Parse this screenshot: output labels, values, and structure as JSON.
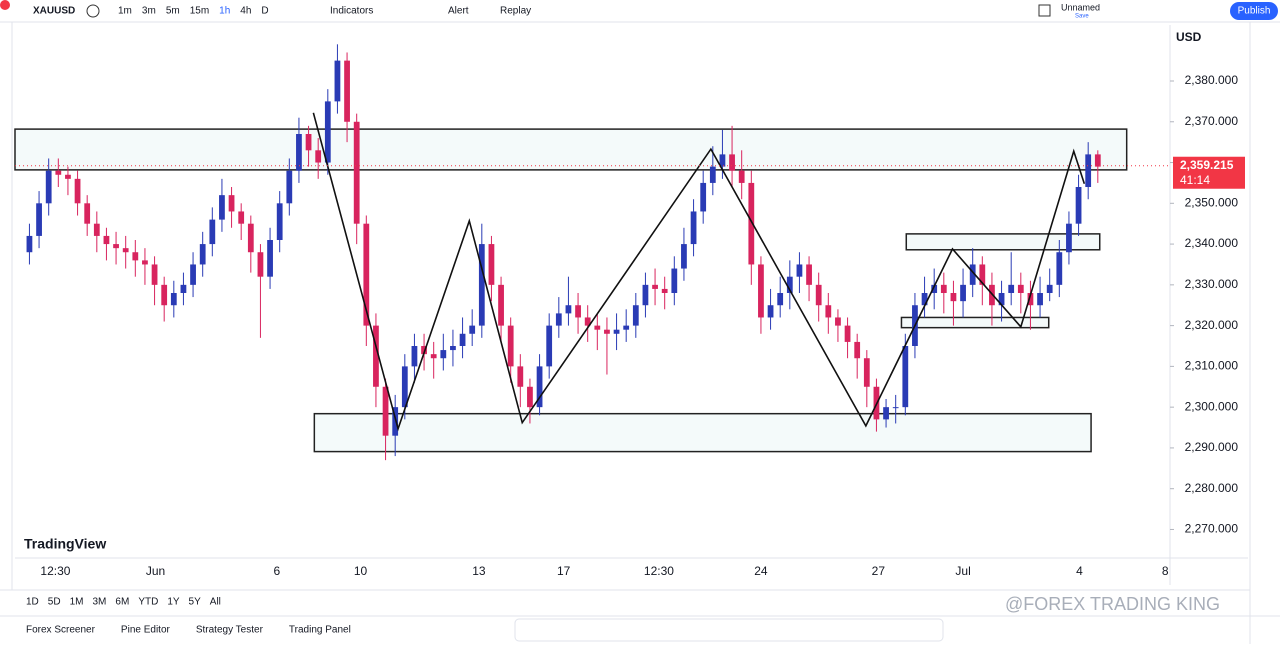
{
  "toolbar": {
    "symbol": "XAUUSD",
    "intervals": [
      "1m",
      "3m",
      "5m",
      "15m",
      "1h",
      "4h",
      "D"
    ],
    "active_interval": 4,
    "indicators": "Indicators",
    "alert": "Alert",
    "replay": "Replay",
    "layout_name": "Unnamed",
    "save": "Save",
    "publish": "Publish"
  },
  "chart_data": {
    "type": "candlestick",
    "currency": "USD",
    "watermark": "TradingView",
    "overlay_text": "@FOREX TRADING KING",
    "up_color": "#2a3bb5",
    "down_color": "#d8245e",
    "ylim": [
      2263,
      2393
    ],
    "yticks": [
      {
        "value": 2270,
        "label": "2,270.000"
      },
      {
        "value": 2280,
        "label": "2,280.000"
      },
      {
        "value": 2290,
        "label": "2,290.000"
      },
      {
        "value": 2300,
        "label": "2,300.000"
      },
      {
        "value": 2310,
        "label": "2,310.000"
      },
      {
        "value": 2320,
        "label": "2,320.000"
      },
      {
        "value": 2330,
        "label": "2,330.000"
      },
      {
        "value": 2340,
        "label": "2,340.000"
      },
      {
        "value": 2350,
        "label": "2,350.000"
      },
      {
        "value": 2360,
        "label": "2,360.000"
      },
      {
        "value": 2370,
        "label": "2,370.000"
      },
      {
        "value": 2380,
        "label": "2,380.000"
      }
    ],
    "xlim": [
      -1.5,
      118.5
    ],
    "xticks": [
      {
        "value": 2.7,
        "label": "12:30"
      },
      {
        "value": 13.1,
        "label": "Jun"
      },
      {
        "value": 25.7,
        "label": "6"
      },
      {
        "value": 34.4,
        "label": "10"
      },
      {
        "value": 46.7,
        "label": "13"
      },
      {
        "value": 55.5,
        "label": "17"
      },
      {
        "value": 65.4,
        "label": "12:30"
      },
      {
        "value": 76.0,
        "label": "24"
      },
      {
        "value": 88.2,
        "label": "27"
      },
      {
        "value": 97.0,
        "label": "Jul"
      },
      {
        "value": 109.1,
        "label": "4"
      },
      {
        "value": 118.0,
        "label": "8"
      }
    ],
    "last_price": {
      "value": 2359.215,
      "label": "2,359.215"
    },
    "countdown": "41:14",
    "x": [
      0,
      1,
      2,
      3,
      4,
      5,
      6,
      7,
      8,
      9,
      10,
      11,
      12,
      13,
      14,
      15,
      16,
      17,
      18,
      19,
      20,
      21,
      22,
      23,
      24,
      25,
      26,
      27,
      28,
      29,
      30,
      31,
      32,
      33,
      34,
      35,
      36,
      37,
      38,
      39,
      40,
      41,
      42,
      43,
      44,
      45,
      46,
      47,
      48,
      49,
      50,
      51,
      52,
      53,
      54,
      55,
      56,
      57,
      58,
      59,
      60,
      61,
      62,
      63,
      64,
      65,
      66,
      67,
      68,
      69,
      70,
      71,
      72,
      73,
      74,
      75,
      76,
      77,
      78,
      79,
      80,
      81,
      82,
      83,
      84,
      85,
      86,
      87,
      88,
      89,
      90,
      91,
      92,
      93,
      94,
      95,
      96,
      97,
      98,
      99,
      100,
      101,
      102,
      103,
      104,
      105,
      106,
      107,
      108,
      109,
      110,
      111
    ],
    "open": [
      2338,
      2342,
      2350,
      2358,
      2357,
      2356,
      2350,
      2345,
      2342,
      2340,
      2339,
      2338,
      2336,
      2335,
      2330,
      2325,
      2328,
      2330,
      2335,
      2340,
      2346,
      2352,
      2348,
      2345,
      2338,
      2332,
      2341,
      2350,
      2358,
      2367,
      2363,
      2360,
      2375,
      2385,
      2370,
      2345,
      2320,
      2305,
      2293,
      2300,
      2310,
      2315,
      2313,
      2312,
      2314,
      2315,
      2318,
      2320,
      2340,
      2330,
      2320,
      2310,
      2305,
      2300,
      2310,
      2320,
      2323,
      2325,
      2322,
      2320,
      2319,
      2318,
      2319,
      2320,
      2325,
      2330,
      2329,
      2328,
      2334,
      2340,
      2348,
      2355,
      2359,
      2362,
      2358,
      2355,
      2335,
      2322,
      2325,
      2328,
      2332,
      2335,
      2330,
      2325,
      2322,
      2320,
      2316,
      2312,
      2305,
      2297,
      2300,
      2300,
      2315,
      2325,
      2328,
      2330,
      2328,
      2326,
      2330,
      2335,
      2330,
      2325,
      2328,
      2330,
      2328,
      2325,
      2328,
      2330,
      2338,
      2345,
      2354,
      2362
    ],
    "high": [
      2345,
      2353,
      2361,
      2361,
      2359,
      2358,
      2352,
      2348,
      2344,
      2343,
      2342,
      2341,
      2339,
      2337,
      2332,
      2331,
      2333,
      2338,
      2343,
      2349,
      2356,
      2354,
      2350,
      2347,
      2340,
      2344,
      2353,
      2361,
      2371,
      2369,
      2366,
      2378,
      2389,
      2387,
      2372,
      2347,
      2323,
      2307,
      2303,
      2313,
      2318,
      2318,
      2316,
      2318,
      2319,
      2322,
      2324,
      2345,
      2342,
      2332,
      2322,
      2313,
      2307,
      2313,
      2323,
      2327,
      2332,
      2328,
      2325,
      2323,
      2322,
      2323,
      2324,
      2328,
      2333,
      2334,
      2332,
      2337,
      2344,
      2351,
      2358,
      2364,
      2368,
      2369,
      2363,
      2358,
      2337,
      2329,
      2332,
      2336,
      2338,
      2337,
      2333,
      2328,
      2324,
      2322,
      2318,
      2314,
      2307,
      2302,
      2303,
      2318,
      2328,
      2332,
      2334,
      2333,
      2331,
      2334,
      2339,
      2337,
      2333,
      2331,
      2338,
      2333,
      2331,
      2332,
      2334,
      2341,
      2348,
      2357,
      2365,
      2363
    ],
    "low": [
      2335,
      2339,
      2347,
      2354,
      2352,
      2347,
      2342,
      2338,
      2336,
      2335,
      2334,
      2332,
      2330,
      2325,
      2321,
      2322,
      2325,
      2327,
      2332,
      2337,
      2343,
      2344,
      2341,
      2333,
      2317,
      2329,
      2338,
      2347,
      2355,
      2359,
      2356,
      2357,
      2372,
      2365,
      2340,
      2315,
      2300,
      2287,
      2288,
      2297,
      2306,
      2309,
      2307,
      2309,
      2310,
      2312,
      2315,
      2317,
      2326,
      2316,
      2306,
      2300,
      2296,
      2298,
      2307,
      2317,
      2320,
      2318,
      2316,
      2314,
      2308,
      2314,
      2316,
      2317,
      2322,
      2325,
      2324,
      2325,
      2331,
      2337,
      2345,
      2352,
      2356,
      2354,
      2351,
      2330,
      2318,
      2319,
      2322,
      2324,
      2328,
      2326,
      2321,
      2318,
      2316,
      2312,
      2307,
      2300,
      2294,
      2295,
      2296,
      2298,
      2312,
      2322,
      2324,
      2323,
      2320,
      2322,
      2327,
      2325,
      2320,
      2321,
      2325,
      2323,
      2319,
      2322,
      2326,
      2327,
      2335,
      2342,
      2351,
      2355
    ],
    "close": [
      2342,
      2350,
      2358,
      2357,
      2356,
      2350,
      2345,
      2342,
      2340,
      2339,
      2338,
      2336,
      2335,
      2330,
      2325,
      2328,
      2330,
      2335,
      2340,
      2346,
      2352,
      2348,
      2345,
      2338,
      2332,
      2341,
      2350,
      2358,
      2367,
      2363,
      2360,
      2375,
      2385,
      2370,
      2345,
      2320,
      2305,
      2293,
      2300,
      2310,
      2315,
      2313,
      2312,
      2314,
      2315,
      2318,
      2320,
      2340,
      2330,
      2320,
      2310,
      2305,
      2300,
      2310,
      2320,
      2323,
      2325,
      2322,
      2320,
      2319,
      2318,
      2319,
      2320,
      2325,
      2330,
      2329,
      2328,
      2334,
      2340,
      2348,
      2355,
      2359,
      2362,
      2358,
      2355,
      2335,
      2322,
      2325,
      2328,
      2332,
      2335,
      2330,
      2325,
      2322,
      2320,
      2316,
      2312,
      2305,
      2297,
      2300,
      2300,
      2315,
      2325,
      2328,
      2330,
      2328,
      2326,
      2330,
      2335,
      2330,
      2325,
      2328,
      2330,
      2328,
      2325,
      2328,
      2330,
      2338,
      2345,
      2354,
      2362,
      2359
    ],
    "zones": [
      {
        "x": [
          -1.5,
          114.0
        ],
        "y": [
          2358.2,
          2368.2
        ]
      },
      {
        "x": [
          29.6,
          110.3
        ],
        "y": [
          2289.1,
          2298.4
        ]
      },
      {
        "x": [
          91.1,
          111.2
        ],
        "y": [
          2338.6,
          2342.5
        ]
      },
      {
        "x": [
          90.6,
          105.9
        ],
        "y": [
          2319.5,
          2322.0
        ]
      }
    ],
    "zigzag": {
      "x": [
        29.5,
        38.3,
        45.7,
        51.2,
        70.8,
        86.9,
        95.9,
        103.0,
        108.5,
        109.6
      ],
      "y": [
        2372.2,
        2294.7,
        2345.7,
        2296.2,
        2363.3,
        2295.4,
        2338.8,
        2319.7,
        2362.8,
        2354.8
      ]
    }
  },
  "range_bar": [
    "1D",
    "5D",
    "1M",
    "3M",
    "6M",
    "YTD",
    "1Y",
    "5Y",
    "All"
  ],
  "bottom_panel": [
    "Forex Screener",
    "Pine Editor",
    "Strategy Tester",
    "Trading Panel"
  ]
}
